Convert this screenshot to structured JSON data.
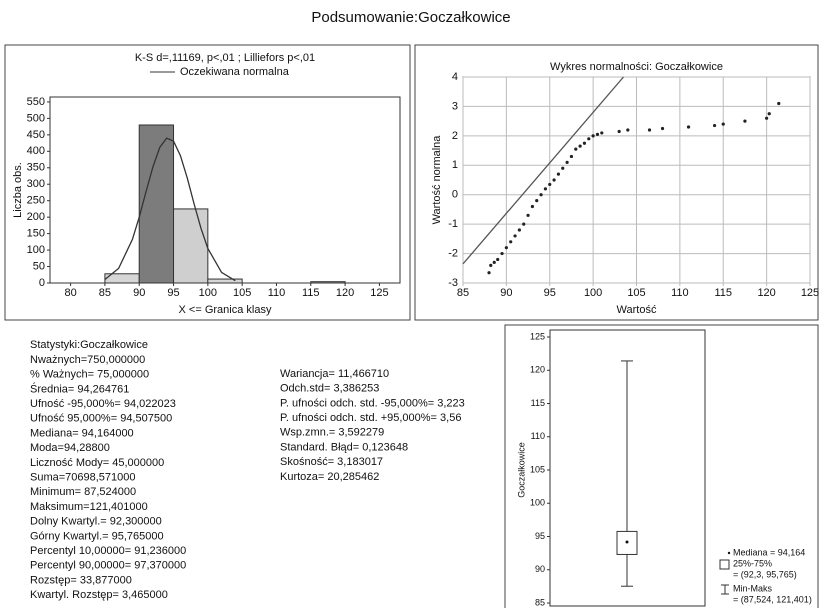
{
  "title": "Podsumowanie:Goczałkowice",
  "chart_data": [
    {
      "type": "histogram",
      "title": "K-S d=,11169, p<,01 ; Lilliefors p<,01",
      "xlabel": "X <= Granica klasy",
      "ylabel": "Liczba obs.",
      "bins": [
        85,
        90,
        95,
        100,
        105,
        110,
        115,
        120
      ],
      "counts": [
        28,
        480,
        225,
        12,
        0,
        0,
        4
      ],
      "colors": [
        "#d6d6d6",
        "#7c7c7c",
        "#cfcfcf",
        "#d6d6d6",
        "#d6d6d6",
        "#d6d6d6",
        "#b0b0b0"
      ],
      "curve": {
        "name": "Oczekiwana normalna",
        "color": "#333333",
        "x": [
          85,
          87,
          89,
          90,
          91,
          92,
          93,
          94,
          95,
          96,
          97,
          98,
          99,
          100,
          102,
          104
        ],
        "values": [
          10.5,
          44.4,
          132,
          200,
          278,
          353,
          412,
          440,
          431,
          387,
          319,
          240,
          166,
          105,
          32,
          7
        ]
      },
      "xlim": [
        77,
        128
      ],
      "xticks": [
        80,
        85,
        90,
        95,
        100,
        105,
        110,
        115,
        120,
        125
      ],
      "ylim": [
        0,
        565
      ],
      "yticks": [
        0,
        50,
        100,
        150,
        200,
        250,
        300,
        350,
        400,
        450,
        500,
        550
      ]
    },
    {
      "type": "scatter",
      "title": "Wykres normalności: Goczałkowice",
      "xlabel": "Wartość",
      "ylabel": "Wartość normalna",
      "grid": true,
      "color": "#222222",
      "x": [
        88,
        88.2,
        88.6,
        89,
        89.5,
        90,
        90.5,
        91,
        91.5,
        92,
        92.5,
        93,
        93.5,
        94,
        94.5,
        95,
        95.5,
        96,
        96.5,
        97,
        97.5,
        98,
        98.5,
        99,
        99.5,
        100,
        100.5,
        101,
        103,
        104,
        106.5,
        108,
        111,
        114,
        115,
        117.5,
        120,
        120.3,
        121.4
      ],
      "values": [
        -2.65,
        -2.4,
        -2.3,
        -2.2,
        -2,
        -1.8,
        -1.6,
        -1.4,
        -1.2,
        -1,
        -0.7,
        -0.4,
        -0.2,
        0,
        0.2,
        0.35,
        0.5,
        0.7,
        0.9,
        1.1,
        1.3,
        1.55,
        1.65,
        1.75,
        1.9,
        2,
        2.05,
        2.1,
        2.15,
        2.2,
        2.2,
        2.25,
        2.3,
        2.35,
        2.4,
        2.5,
        2.6,
        2.75,
        3.1
      ],
      "line": {
        "color": "#555555",
        "x": [
          85,
          103.5
        ],
        "values": [
          -2.35,
          4
        ]
      },
      "xlim": [
        85,
        125
      ],
      "xticks": [
        85,
        90,
        95,
        100,
        105,
        110,
        115,
        120,
        125
      ],
      "ylim": [
        -3,
        4
      ],
      "yticks": [
        -3,
        -2,
        -1,
        0,
        1,
        2,
        3,
        4
      ]
    },
    {
      "type": "box",
      "ylabel": "Goczałkowice",
      "median": 94.164,
      "q1": 92.3,
      "q3": 95.765,
      "min": 87.524,
      "max": 121.401,
      "ylim": [
        85,
        125
      ],
      "yticks": [
        85,
        90,
        95,
        100,
        105,
        110,
        115,
        120,
        125
      ],
      "legend": [
        "Mediana = 94,164",
        "25%-75%",
        "= (92,3, 95,765)",
        "Min-Maks",
        "= (87,524, 121,401)"
      ]
    }
  ],
  "stats": {
    "title": "Statystyki:Goczałkowice",
    "left": [
      "Nważnych=750,000000",
      "% Ważnych= 75,000000",
      "Średnia= 94,264761",
      "Ufność -95,000%= 94,022023",
      "Ufność 95,000%= 94,507500",
      "Mediana= 94,164000",
      "Moda=94,28800",
      "Liczność Mody= 45,000000",
      "Suma=70698,571000",
      "Minimum= 87,524000",
      "Maksimum=121,401000",
      "Dolny Kwartyl.= 92,300000",
      "Górny Kwartyl.= 95,765000",
      "Percentyl 10,00000= 91,236000",
      "Percentyl 90,00000= 97,370000",
      "Rozstęp= 33,877000",
      "Kwartyl. Rozstęp= 3,465000"
    ],
    "right": [
      "Wariancja= 11,466710",
      "Odch.std= 3,386253",
      "P. ufności odch. std. -95,000%= 3,223",
      "P. ufności odch. std. +95,000%= 3,56",
      "Wsp.zmn.= 3,592279",
      "Standard. Błąd= 0,123648",
      "Skośność= 3,183017",
      "Kurtoza= 20,285462"
    ]
  }
}
